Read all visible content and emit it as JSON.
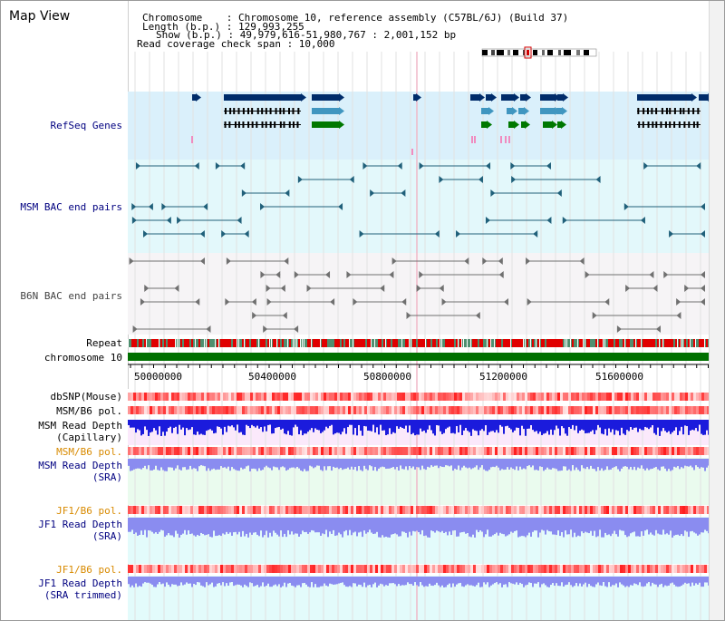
{
  "view": {
    "title": "Map View",
    "chromosome_label": "Chromosome    : Chromosome 10, reference assembly (C57BL/6J) (Build 37)",
    "length_label": "Length (b.p.) : 129,993,255",
    "show_label": "Show (b.p.) : 49,979,616-51,980,767 : 2,001,152 bp",
    "coverage_label": "Read coverage check span : 10,000"
  },
  "tracks": {
    "refseq": "RefSeq Genes",
    "msm_bac": "MSM BAC end pairs",
    "b6n_bac": "B6N BAC end pairs",
    "repeat": "Repeat",
    "chromosome": "chromosome 10",
    "dbsnp": "dbSNP(Mouse)",
    "msm_b6_pol_1": "MSM/B6 pol.",
    "msm_read_depth_cap_1": "MSM Read Depth",
    "msm_read_depth_cap_2": "(Capillary)",
    "msm_b6_pol_2": "MSM/B6 pol.",
    "msm_read_depth_sra_1": "MSM Read Depth",
    "msm_read_depth_sra_2": "(SRA)",
    "jf1_b6_pol_1": "JF1/B6 pol.",
    "jf1_read_depth_sra_1": "JF1 Read Depth",
    "jf1_read_depth_sra_2": "(SRA)",
    "jf1_b6_pol_2": "JF1/B6 pol.",
    "jf1_read_depth_trim_1": "JF1 Read Depth",
    "jf1_read_depth_trim_2": "(SRA trimmed)"
  },
  "axis": {
    "ticks": [
      "50000000",
      "50400000",
      "50800000",
      "51200000",
      "51600000"
    ]
  },
  "colors": {
    "refseq_bg": "#daf0fb",
    "msm_bg": "#e3f8fb",
    "b6n_bg": "#f6f4f6",
    "gene_dark": "#002c6a",
    "gene_mid": "#4096c0",
    "gene_green": "#007800",
    "msm_pair": "#20607a",
    "b6n_pair": "#707070",
    "repeat_red": "#e00000",
    "chrom_green": "#007000",
    "depth_dark": "#1b1bdc",
    "depth_light": "#8a8cf0"
  }
}
